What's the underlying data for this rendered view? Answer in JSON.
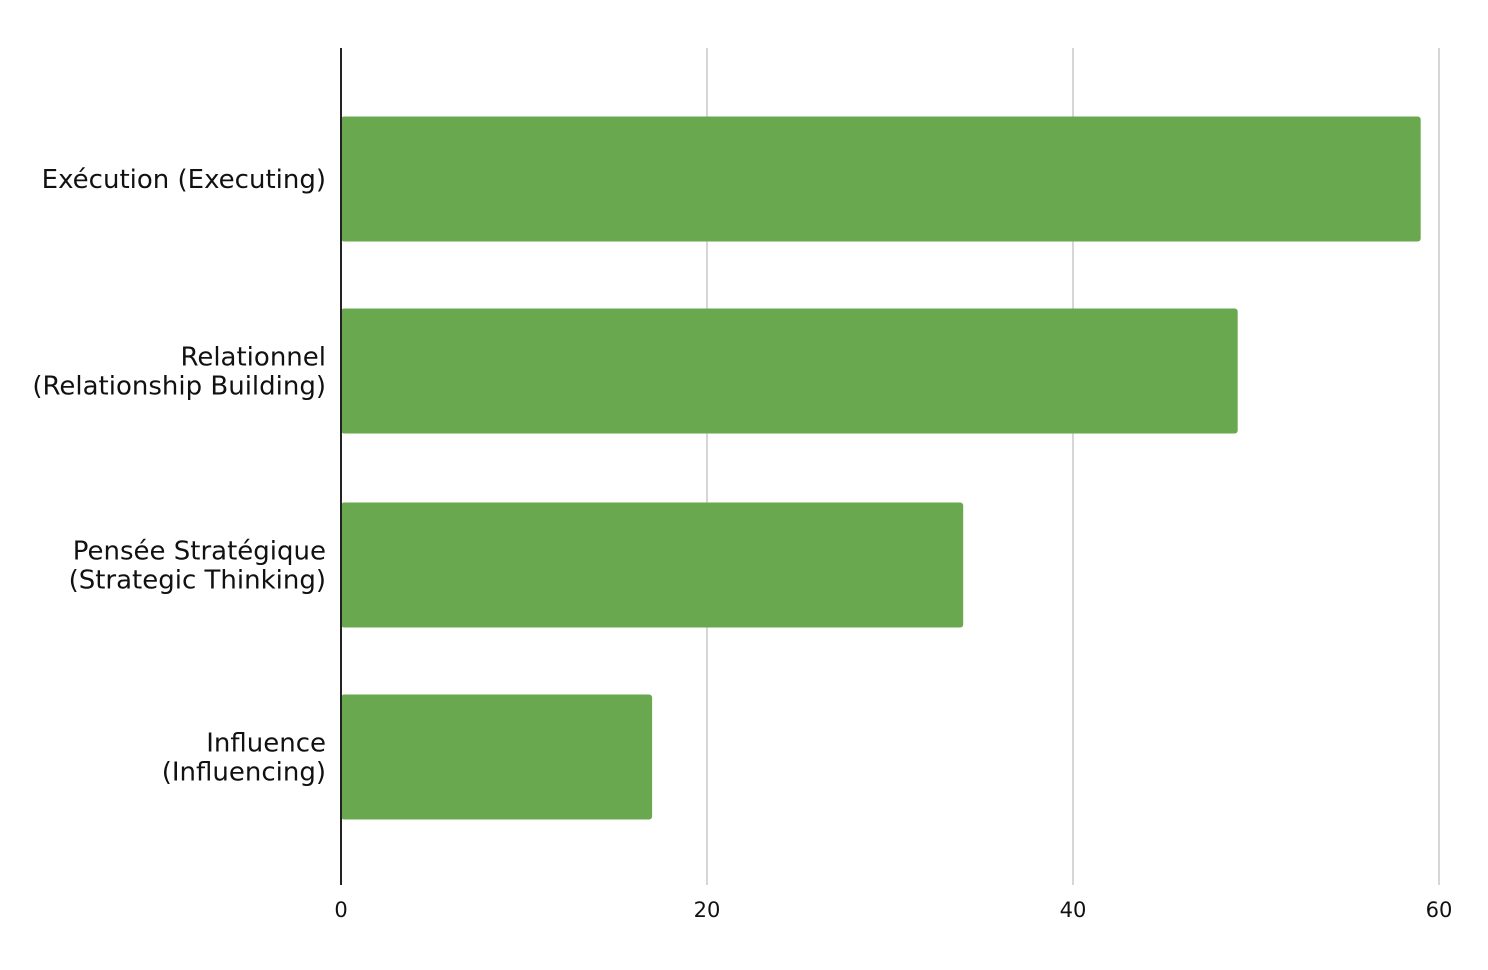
{
  "chart_data": {
    "type": "bar",
    "orientation": "horizontal",
    "categories": [
      [
        "Exécution (Executing)"
      ],
      [
        "Relationnel",
        "(Relationship Building)"
      ],
      [
        "Pensée Stratégique",
        "(Strategic Thinking)"
      ],
      [
        "Influence",
        "(Influencing)"
      ]
    ],
    "values": [
      59,
      49,
      34,
      17
    ],
    "xlim": [
      0,
      60
    ],
    "x_ticks": [
      0,
      20,
      40,
      60
    ],
    "grid": true,
    "legend": "none",
    "title": "",
    "xlabel": "",
    "ylabel": "",
    "colors": {
      "bar": "#6aa84f",
      "grid": "#c8c8c8",
      "axis": "#222222",
      "text": "#111111"
    }
  }
}
